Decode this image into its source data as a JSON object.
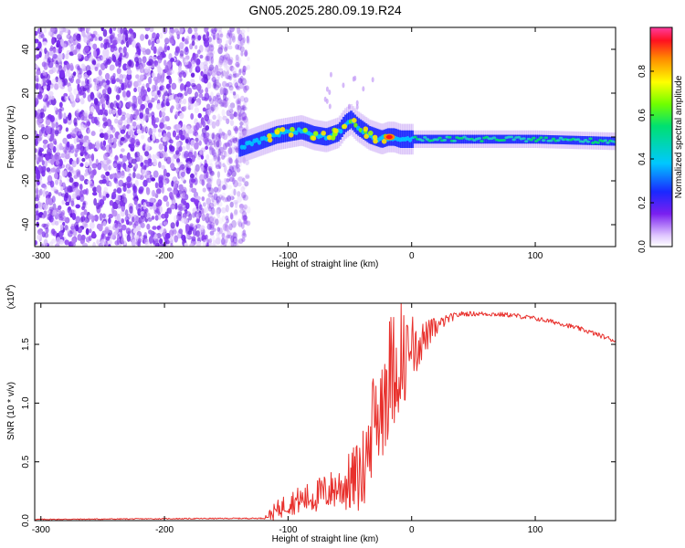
{
  "figure_title": "GN05.2025.280.09.19.R24",
  "chart_data": [
    {
      "type": "heatmap",
      "name": "spectrogram",
      "title": "GN05.2025.280.09.19.R24",
      "xlabel": "Height of straight line (km)",
      "ylabel": "Frequency (Hz)",
      "xlim": [
        -305,
        165
      ],
      "ylim": [
        -50,
        50
      ],
      "xticks": [
        -300,
        -200,
        -100,
        0,
        100
      ],
      "yticks": [
        -40,
        -20,
        0,
        20,
        40
      ],
      "xtick_labels": [
        "-300",
        "-200",
        "-100",
        "0",
        "100"
      ],
      "ytick_labels": [
        "-40",
        "-20",
        "0",
        "20",
        "40"
      ],
      "noise_region_x": [
        -305,
        -140
      ],
      "trace": {
        "x": [
          -140,
          -130,
          -120,
          -110,
          -100,
          -90,
          -80,
          -70,
          -60,
          -55,
          -50,
          -45,
          -40,
          -35,
          -30,
          -25,
          -20,
          -15,
          -10,
          0,
          20,
          50,
          100,
          165
        ],
        "y": [
          -5,
          -3,
          -1,
          1,
          2,
          3,
          1,
          0,
          2,
          6,
          8,
          5,
          3,
          1,
          0,
          -1,
          0,
          0,
          -1,
          -1,
          -1,
          -1,
          -1,
          -2
        ]
      },
      "colorbar": {
        "label": "Normalized spectral amplitude",
        "range": [
          0,
          1
        ],
        "ticks": [
          0.0,
          0.2,
          0.4,
          0.6,
          0.8
        ],
        "tick_labels": [
          "0.0",
          "0.2",
          "0.4",
          "0.6",
          "0.8"
        ]
      }
    },
    {
      "type": "line",
      "name": "snr",
      "xlabel": "Height of straight line (km)",
      "ylabel": "SNR (10 * v/v)",
      "scale_label": "(x10",
      "scale_exp": "4",
      "scale_close": ")",
      "xlim": [
        -305,
        165
      ],
      "ylim": [
        0,
        1.85
      ],
      "xticks": [
        -300,
        -200,
        -100,
        0,
        100
      ],
      "yticks": [
        0.0,
        0.5,
        1.0,
        1.5
      ],
      "xtick_labels": [
        "-300",
        "-200",
        "-100",
        "0",
        "100"
      ],
      "ytick_labels": [
        "0.0",
        "0.5",
        "1.0",
        "1.5"
      ],
      "series": [
        {
          "name": "SNR",
          "color": "#e8302c",
          "envelope_x": [
            -305,
            -120,
            -110,
            -100,
            -80,
            -60,
            -50,
            -40,
            -35,
            -30,
            -25,
            -20,
            -15,
            -10,
            0,
            10,
            20,
            30,
            40,
            60,
            80,
            100,
            120,
            140,
            165
          ],
          "envelope_y": [
            0.01,
            0.02,
            0.08,
            0.15,
            0.2,
            0.28,
            0.32,
            0.4,
            0.6,
            0.85,
            1.0,
            1.2,
            1.3,
            1.35,
            1.45,
            1.55,
            1.65,
            1.72,
            1.76,
            1.76,
            1.75,
            1.72,
            1.68,
            1.62,
            1.53
          ],
          "noise_amp_x": [
            -305,
            -120,
            -110,
            -90,
            -60,
            -40,
            -30,
            -20,
            -10,
            10,
            25,
            40,
            165
          ],
          "noise_amp_y": [
            0.004,
            0.005,
            0.08,
            0.12,
            0.18,
            0.35,
            0.5,
            0.55,
            0.45,
            0.15,
            0.05,
            0.02,
            0.02
          ]
        }
      ]
    }
  ],
  "colors": {
    "trace": "#e8302c",
    "noise": "#6a1fe0",
    "background": "#ffffff"
  }
}
